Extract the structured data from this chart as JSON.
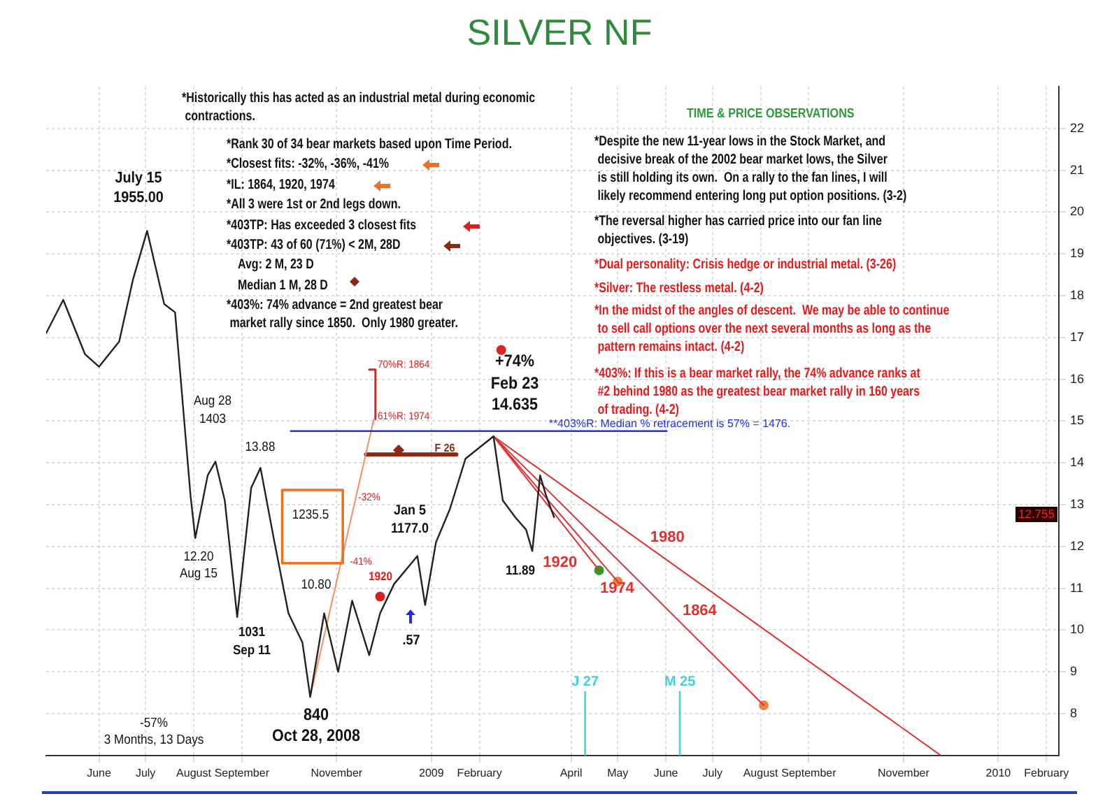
{
  "chart_data": {
    "type": "line",
    "title": "SILVER NF",
    "xlim": [
      "2008-05-11",
      "2010-02-22"
    ],
    "xticks": [
      {
        "value": "2008-06-14",
        "label": "June"
      },
      {
        "value": "2008-07-14",
        "label": "July"
      },
      {
        "value": "2008-08-14",
        "label": "August"
      },
      {
        "value": "2008-09-14",
        "label": "September"
      },
      {
        "value": "2008-11-14",
        "label": "November"
      },
      {
        "value": "2009-01-14",
        "label": "2009"
      },
      {
        "value": "2009-02-14",
        "label": "February"
      },
      {
        "value": "2009-04-14",
        "label": "April"
      },
      {
        "value": "2009-05-14",
        "label": "May"
      },
      {
        "value": "2009-06-14",
        "label": "June"
      },
      {
        "value": "2009-07-14",
        "label": "July"
      },
      {
        "value": "2009-08-14",
        "label": "August"
      },
      {
        "value": "2009-09-14",
        "label": "September"
      },
      {
        "value": "2009-11-14",
        "label": "November"
      },
      {
        "value": "2010-01-14",
        "label": "2010"
      },
      {
        "value": "2010-02-14",
        "label": "February"
      }
    ],
    "ylim": [
      7,
      23
    ],
    "yticks": [
      8,
      9,
      10,
      11,
      12,
      13,
      14,
      15,
      16,
      17,
      18,
      19,
      20,
      21,
      22
    ],
    "grid": true,
    "legend": false,
    "series": [
      {
        "color": "#222222",
        "marker": "none",
        "x": [
          "2008-05-11",
          "2008-05-22",
          "2008-06-05",
          "2008-06-14",
          "2008-06-27",
          "2008-07-06",
          "2008-07-15",
          "2008-07-26",
          "2008-08-02",
          "2008-08-07",
          "2008-08-12",
          "2008-08-15",
          "2008-08-23",
          "2008-08-28",
          "2008-09-03",
          "2008-09-11",
          "2008-09-20",
          "2008-09-26",
          "2008-10-05",
          "2008-10-14",
          "2008-10-23",
          "2008-10-28",
          "2008-11-06",
          "2008-11-15",
          "2008-11-24",
          "2008-12-05",
          "2008-12-12",
          "2008-12-21",
          "2009-01-05",
          "2009-01-10",
          "2009-01-17",
          "2009-01-26",
          "2009-02-05",
          "2009-02-23",
          "2009-03-01",
          "2009-03-09",
          "2009-03-16",
          "2009-03-20",
          "2009-03-25",
          "2009-03-29",
          "2009-04-03"
        ],
        "values": [
          17.1,
          17.9,
          16.6,
          16.3,
          16.9,
          18.4,
          19.55,
          17.8,
          17.6,
          15.4,
          13.2,
          12.2,
          13.7,
          14.03,
          13.1,
          10.31,
          13.4,
          13.88,
          12.1,
          10.4,
          9.7,
          8.4,
          10.4,
          9.0,
          10.7,
          9.4,
          10.4,
          11.1,
          11.77,
          10.6,
          12.1,
          12.9,
          14.1,
          14.635,
          13.1,
          12.7,
          12.4,
          11.89,
          13.7,
          13.2,
          12.7
        ]
      },
      {
        "name": "1980",
        "color": "#e03030",
        "marker": "none",
        "x": [
          "2009-02-23",
          "2009-12-08"
        ],
        "values": [
          14.635,
          7.0
        ]
      },
      {
        "name": "1920",
        "color": "#e03030",
        "marker": "none",
        "x": [
          "2009-02-23",
          "2009-05-02"
        ],
        "values": [
          14.635,
          11.43
        ]
      },
      {
        "name": "1974",
        "color": "#e03030",
        "marker": "none",
        "x": [
          "2009-02-23",
          "2009-05-14"
        ],
        "values": [
          14.635,
          11.16
        ]
      },
      {
        "name": "1864",
        "color": "#e03030",
        "marker": "none",
        "x": [
          "2009-02-23",
          "2009-08-16"
        ],
        "values": [
          14.635,
          8.2
        ]
      },
      {
        "type": "scatter",
        "colors": [
          "#2a9a2a",
          "#f08040",
          "#f08040"
        ],
        "marker": "circle",
        "x": [
          "2009-05-02",
          "2009-05-14",
          "2009-08-16"
        ],
        "values": [
          11.43,
          11.16,
          8.2
        ]
      },
      {
        "color": "#f07020",
        "marker": "none",
        "x": [
          "2008-10-10",
          "2008-10-10",
          "2008-11-18",
          "2008-11-18"
        ],
        "values": [
          11.6,
          13.35,
          13.35,
          11.6
        ]
      },
      {
        "color": "#f07020",
        "marker": "none",
        "x": [
          "2008-10-10",
          "2008-11-18"
        ],
        "values": [
          11.6,
          11.6
        ]
      },
      {
        "color": "#f09060",
        "marker": "none",
        "x": [
          "2008-10-28",
          "2008-12-08"
        ],
        "values": [
          8.4,
          15.05
        ]
      },
      {
        "color": "#e02020",
        "marker": "none",
        "x": [
          "2008-12-05",
          "2008-12-09",
          "2008-12-09"
        ],
        "values": [
          16.23,
          16.23,
          15.05
        ]
      },
      {
        "color": "#8b2a10",
        "marker": "none",
        "x": [
          "2008-12-03",
          "2009-01-30"
        ],
        "values": [
          14.2,
          14.2
        ]
      },
      {
        "type": "scatter",
        "color": "#e02020",
        "marker": "circle",
        "x": [
          "2008-12-12",
          "2009-02-28"
        ],
        "values": [
          10.8,
          16.7
        ]
      }
    ],
    "ref_lines": [
      {
        "axis": "y",
        "value": 14.76,
        "label": "**403%R: Median % retracement is 57% = 1476.",
        "color": "#2030e0"
      },
      {
        "axis": "x",
        "value": "2009-04-23",
        "label": "J 27",
        "color": "#40d0e0"
      },
      {
        "axis": "x",
        "value": "2009-06-23",
        "label": "M 25",
        "color": "#40d0e0"
      }
    ],
    "annotations": [
      "*Historically this has acted as an industrial metal during economic\n contractions.",
      "*Rank 30 of 34 bear markets based upon Time Period.",
      "*Closest fits: -32%, -36%, -41%",
      "*IL: 1864, 1920, 1974",
      "*All 3 were 1st or 2nd legs down.",
      "*403TP: Has exceeded 3 closest fits",
      "*403TP: 43 of 60 (71%) < 2M, 28D",
      "Avg: 2 M, 23 D",
      "Median 1 M, 28 D",
      "*403%: 74% advance = 2nd greatest bear\n market rally since 1850.  Only 1980 greater.",
      "TIME & PRICE OBSERVATIONS",
      "*Despite the new 11-year lows in the Stock Market, and\n decisive break of the 2002 bear market lows, the Silver\n is still holding its own.  On a rally to the fan lines, I will\n likely recommend entering long put option positions. (3-2)",
      "*The reversal higher has carried price into our fan line\n objectives. (3-19)",
      "*Dual personality: Crisis hedge or industrial metal. (3-26)",
      "*Silver: The restless metal. (4-2)",
      "*In the midst of the angles of descent.  We may be able to continue\n to sell call options over the next several months as long as the\n pattern remains intact. (4-2)",
      "*403%: If this is a bear market rally, the 74% advance ranks at\n #2 behind 1980 as the greatest bear market rally in 160 years\n of trading. (4-2)",
      {
        "text": "July 15\n1955.00",
        "x": "2008-07-15",
        "y": 19.55
      },
      {
        "text": "Aug 28\n1403",
        "x": "2008-08-28",
        "y": 14.03
      },
      {
        "text": "13.88",
        "x": "2008-09-26",
        "y": 13.88
      },
      {
        "text": "12.20\nAug 15",
        "x": "2008-08-15",
        "y": 12.2
      },
      {
        "text": "1031\nSep 11",
        "x": "2008-09-11",
        "y": 10.31
      },
      {
        "text": "840\nOct 28, 2008",
        "x": "2008-10-28",
        "y": 8.4
      },
      "-57%\n3 Months, 13 Days",
      "1235.5",
      "10.80",
      "-32%",
      "-41%",
      {
        "text": "1920",
        "x": "2008-12-12",
        "y": 10.8
      },
      {
        "text": "Jan 5\n1177.0",
        "x": "2009-01-05",
        "y": 11.77
      },
      ".57",
      {
        "text": "+74%\nFeb 23\n14.635",
        "x": "2009-02-23",
        "y": 14.635
      },
      {
        "text": "11.89",
        "x": "2009-03-20",
        "y": 11.89
      },
      "70%R: 1864",
      "61%R: 1974",
      "F 26",
      {
        "text": "12.755",
        "y": 12.755
      }
    ]
  }
}
